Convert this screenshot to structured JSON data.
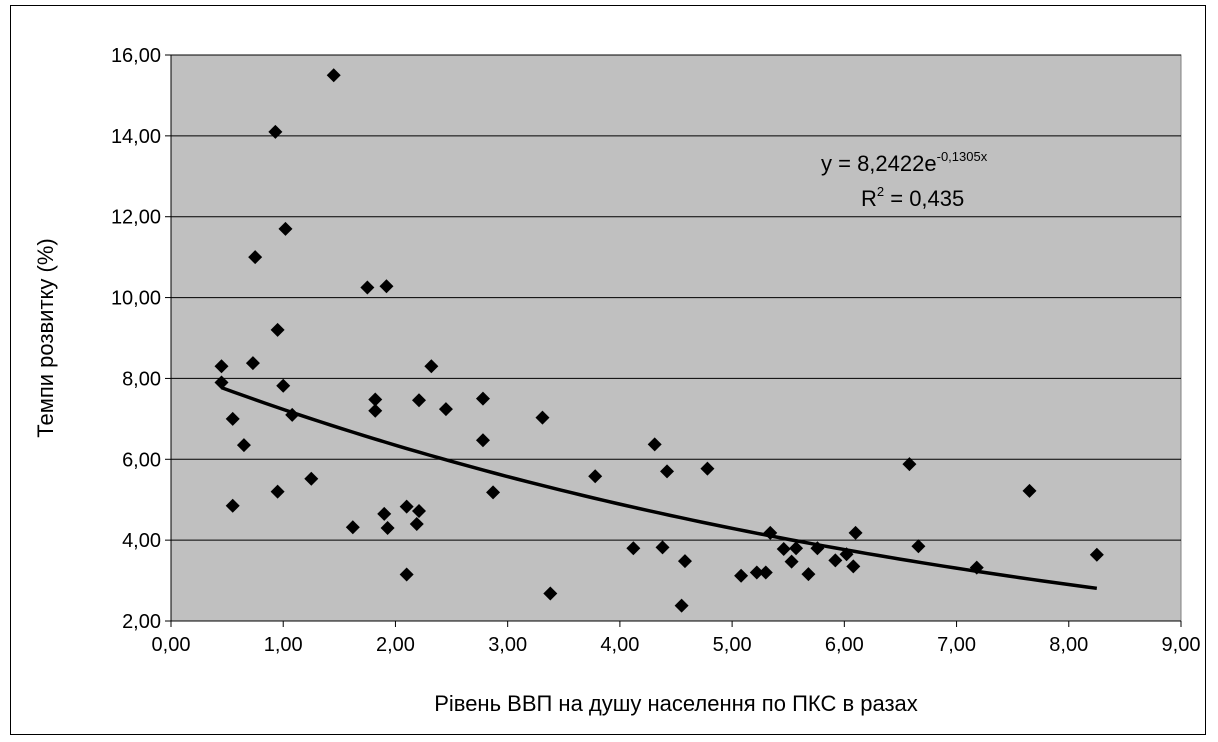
{
  "chart_data": {
    "type": "scatter",
    "title": "",
    "xlabel": "Рівень ВВП на душу населення по ПКС в разах",
    "ylabel": "Темпи розвитку (%)",
    "xlim": [
      0,
      9
    ],
    "ylim": [
      2,
      16
    ],
    "x_ticks": [
      "0,00",
      "1,00",
      "2,00",
      "3,00",
      "4,00",
      "5,00",
      "6,00",
      "7,00",
      "8,00",
      "9,00"
    ],
    "y_ticks": [
      "2,00",
      "4,00",
      "6,00",
      "8,00",
      "10,00",
      "12,00",
      "14,00",
      "16,00"
    ],
    "grid": "horizontal",
    "plot_background": "#c0c0c0",
    "marker_color": "#000000",
    "points": [
      {
        "x": 0.45,
        "y": 8.3
      },
      {
        "x": 0.45,
        "y": 7.9
      },
      {
        "x": 0.55,
        "y": 7.0
      },
      {
        "x": 0.55,
        "y": 4.85
      },
      {
        "x": 0.65,
        "y": 6.35
      },
      {
        "x": 0.73,
        "y": 8.38
      },
      {
        "x": 0.75,
        "y": 11.0
      },
      {
        "x": 0.93,
        "y": 14.1
      },
      {
        "x": 0.95,
        "y": 9.2
      },
      {
        "x": 0.95,
        "y": 5.2
      },
      {
        "x": 1.0,
        "y": 7.82
      },
      {
        "x": 1.02,
        "y": 11.7
      },
      {
        "x": 1.08,
        "y": 7.1
      },
      {
        "x": 1.25,
        "y": 5.52
      },
      {
        "x": 1.45,
        "y": 15.5
      },
      {
        "x": 1.62,
        "y": 4.32
      },
      {
        "x": 1.75,
        "y": 10.25
      },
      {
        "x": 1.82,
        "y": 7.48
      },
      {
        "x": 1.82,
        "y": 7.2
      },
      {
        "x": 1.9,
        "y": 4.65
      },
      {
        "x": 1.92,
        "y": 10.28
      },
      {
        "x": 1.93,
        "y": 4.3
      },
      {
        "x": 2.1,
        "y": 4.83
      },
      {
        "x": 2.1,
        "y": 3.15
      },
      {
        "x": 2.19,
        "y": 4.4
      },
      {
        "x": 2.21,
        "y": 4.72
      },
      {
        "x": 2.21,
        "y": 7.46
      },
      {
        "x": 2.32,
        "y": 8.3
      },
      {
        "x": 2.45,
        "y": 7.24
      },
      {
        "x": 2.78,
        "y": 7.5
      },
      {
        "x": 2.78,
        "y": 6.47
      },
      {
        "x": 2.87,
        "y": 5.18
      },
      {
        "x": 3.31,
        "y": 7.03
      },
      {
        "x": 3.38,
        "y": 2.68
      },
      {
        "x": 3.78,
        "y": 5.58
      },
      {
        "x": 4.12,
        "y": 3.8
      },
      {
        "x": 4.31,
        "y": 6.37
      },
      {
        "x": 4.38,
        "y": 3.82
      },
      {
        "x": 4.42,
        "y": 5.7
      },
      {
        "x": 4.55,
        "y": 2.38
      },
      {
        "x": 4.58,
        "y": 3.48
      },
      {
        "x": 4.78,
        "y": 5.77
      },
      {
        "x": 5.08,
        "y": 3.12
      },
      {
        "x": 5.22,
        "y": 3.2
      },
      {
        "x": 5.3,
        "y": 3.2
      },
      {
        "x": 5.34,
        "y": 4.18
      },
      {
        "x": 5.46,
        "y": 3.78
      },
      {
        "x": 5.53,
        "y": 3.47
      },
      {
        "x": 5.57,
        "y": 3.8
      },
      {
        "x": 5.68,
        "y": 3.16
      },
      {
        "x": 5.76,
        "y": 3.8
      },
      {
        "x": 5.92,
        "y": 3.5
      },
      {
        "x": 6.02,
        "y": 3.65
      },
      {
        "x": 6.08,
        "y": 3.35
      },
      {
        "x": 6.1,
        "y": 4.18
      },
      {
        "x": 6.58,
        "y": 5.88
      },
      {
        "x": 6.66,
        "y": 3.85
      },
      {
        "x": 7.18,
        "y": 3.32
      },
      {
        "x": 7.65,
        "y": 5.22
      },
      {
        "x": 8.25,
        "y": 3.64
      }
    ],
    "trendline": {
      "type": "exponential",
      "a": 8.2422,
      "b": -0.1305,
      "x_range": [
        0.45,
        8.25
      ],
      "color": "#000000"
    },
    "annotations": {
      "equation_base": "y = 8,2422e",
      "equation_exponent": "-0,1305x",
      "r2_prefix": "R",
      "r2_exponent": "2",
      "r2_suffix": " = 0,435"
    }
  }
}
